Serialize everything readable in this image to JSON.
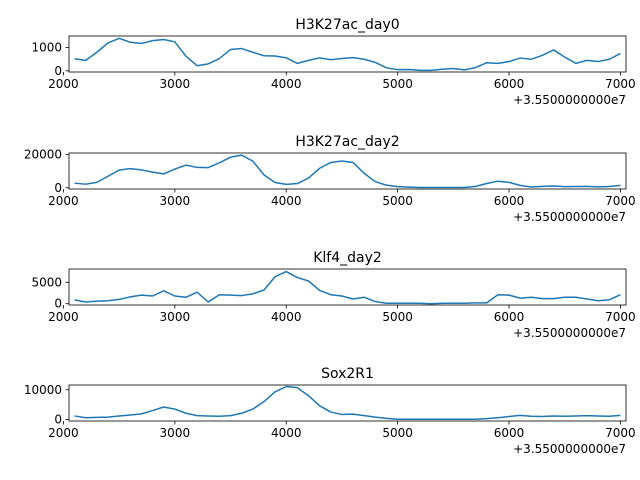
{
  "chart_data": [
    {
      "type": "line",
      "title": "H3K27ac_day0",
      "x_offset_label": "+3.5500000000e7",
      "xlim": [
        2050,
        7050
      ],
      "ylim": [
        -50,
        1500
      ],
      "x_ticks": [
        2000,
        3000,
        4000,
        5000,
        6000,
        7000
      ],
      "y_ticks": [
        0,
        1000
      ],
      "color": "#1f77b4",
      "series": [
        {
          "x": [
            2100,
            2200,
            2300,
            2400,
            2500,
            2600,
            2700,
            2800,
            2900,
            3000,
            3100,
            3200,
            3300,
            3400,
            3500,
            3600,
            3700,
            3800,
            3900,
            4000,
            4100,
            4200,
            4300,
            4400,
            4500,
            4600,
            4700,
            4800,
            4900,
            5000,
            5100,
            5200,
            5300,
            5400,
            5500,
            5600,
            5700,
            5800,
            5900,
            6000,
            6100,
            6200,
            6300,
            6400,
            6500,
            6600,
            6700,
            6800,
            6900,
            7000
          ],
          "y": [
            520,
            450,
            800,
            1200,
            1400,
            1230,
            1180,
            1300,
            1350,
            1250,
            630,
            220,
            300,
            530,
            920,
            960,
            800,
            650,
            640,
            560,
            320,
            450,
            560,
            480,
            530,
            570,
            500,
            360,
            130,
            50,
            60,
            20,
            20,
            70,
            100,
            40,
            140,
            350,
            320,
            400,
            550,
            500,
            670,
            900,
            590,
            320,
            450,
            400,
            500,
            750
          ]
        }
      ]
    },
    {
      "type": "line",
      "title": "H3K27ac_day2",
      "x_offset_label": "+3.5500000000e7",
      "xlim": [
        2050,
        7050
      ],
      "ylim": [
        -700,
        21000
      ],
      "x_ticks": [
        2000,
        3000,
        4000,
        5000,
        6000,
        7000
      ],
      "y_ticks": [
        0,
        20000
      ],
      "color": "#1f77b4",
      "series": [
        {
          "x": [
            2100,
            2200,
            2300,
            2400,
            2500,
            2600,
            2700,
            2800,
            2900,
            3000,
            3100,
            3200,
            3300,
            3400,
            3500,
            3600,
            3700,
            3800,
            3900,
            4000,
            4100,
            4200,
            4300,
            4400,
            4500,
            4600,
            4700,
            4800,
            4900,
            5000,
            5100,
            5200,
            5300,
            5400,
            5500,
            5600,
            5700,
            5800,
            5900,
            6000,
            6100,
            6200,
            6300,
            6400,
            6500,
            6600,
            6700,
            6800,
            6900,
            7000
          ],
          "y": [
            2800,
            2200,
            3300,
            7000,
            10700,
            11600,
            10800,
            9500,
            8400,
            11300,
            13700,
            12300,
            12200,
            15100,
            18500,
            19700,
            16100,
            7800,
            3200,
            2100,
            2600,
            5900,
            11800,
            15300,
            16200,
            15300,
            8700,
            3700,
            1600,
            700,
            400,
            200,
            200,
            200,
            200,
            200,
            900,
            2600,
            4000,
            3300,
            1500,
            500,
            900,
            1100,
            700,
            800,
            900,
            600,
            800,
            1500
          ]
        }
      ]
    },
    {
      "type": "line",
      "title": "Klf4_day2",
      "x_offset_label": "+3.5500000000e7",
      "xlim": [
        2050,
        7050
      ],
      "ylim": [
        -300,
        8100
      ],
      "x_ticks": [
        2000,
        3000,
        4000,
        5000,
        6000,
        7000
      ],
      "y_ticks": [
        0,
        5000
      ],
      "color": "#1f77b4",
      "series": [
        {
          "x": [
            2100,
            2200,
            2300,
            2400,
            2500,
            2600,
            2700,
            2800,
            2900,
            3000,
            3100,
            3200,
            3300,
            3400,
            3500,
            3600,
            3700,
            3800,
            3900,
            4000,
            4100,
            4200,
            4300,
            4400,
            4500,
            4600,
            4700,
            4800,
            4900,
            5000,
            5100,
            5200,
            5300,
            5400,
            5500,
            5600,
            5700,
            5800,
            5900,
            6000,
            6100,
            6200,
            6300,
            6400,
            6500,
            6600,
            6700,
            6800,
            6900,
            7000
          ],
          "y": [
            900,
            400,
            600,
            700,
            1000,
            1600,
            2000,
            1800,
            3000,
            1800,
            1500,
            2700,
            400,
            2100,
            2000,
            1900,
            2300,
            3200,
            6300,
            7500,
            6100,
            5300,
            3100,
            2100,
            1800,
            1100,
            1500,
            500,
            100,
            100,
            100,
            100,
            0,
            100,
            100,
            100,
            200,
            200,
            2100,
            2000,
            1300,
            1500,
            1200,
            1200,
            1500,
            1500,
            1100,
            700,
            900,
            2100
          ]
        }
      ]
    },
    {
      "type": "line",
      "title": "Sox2R1",
      "x_offset_label": "+3.5500000000e7",
      "xlim": [
        2050,
        7050
      ],
      "ylim": [
        -500,
        11600
      ],
      "x_ticks": [
        2000,
        3000,
        4000,
        5000,
        6000,
        7000
      ],
      "y_ticks": [
        0,
        10000
      ],
      "color": "#1f77b4",
      "series": [
        {
          "x": [
            2100,
            2200,
            2300,
            2400,
            2500,
            2600,
            2700,
            2800,
            2900,
            3000,
            3100,
            3200,
            3300,
            3400,
            3500,
            3600,
            3700,
            3800,
            3900,
            4000,
            4100,
            4200,
            4300,
            4400,
            4500,
            4600,
            4700,
            4800,
            4900,
            5000,
            5100,
            5200,
            5300,
            5400,
            5500,
            5600,
            5700,
            5800,
            5900,
            6000,
            6100,
            6200,
            6300,
            6400,
            6500,
            6600,
            6700,
            6800,
            6900,
            7000
          ],
          "y": [
            1200,
            600,
            700,
            800,
            1200,
            1500,
            1900,
            3000,
            4200,
            3500,
            2100,
            1300,
            1200,
            1100,
            1300,
            2100,
            3500,
            6000,
            9300,
            11100,
            10700,
            8000,
            4600,
            2500,
            1700,
            1800,
            1300,
            800,
            400,
            100,
            100,
            100,
            100,
            100,
            100,
            100,
            100,
            300,
            600,
            1000,
            1400,
            1100,
            1000,
            1200,
            1100,
            1200,
            1300,
            1200,
            1100,
            1400
          ]
        }
      ]
    }
  ]
}
